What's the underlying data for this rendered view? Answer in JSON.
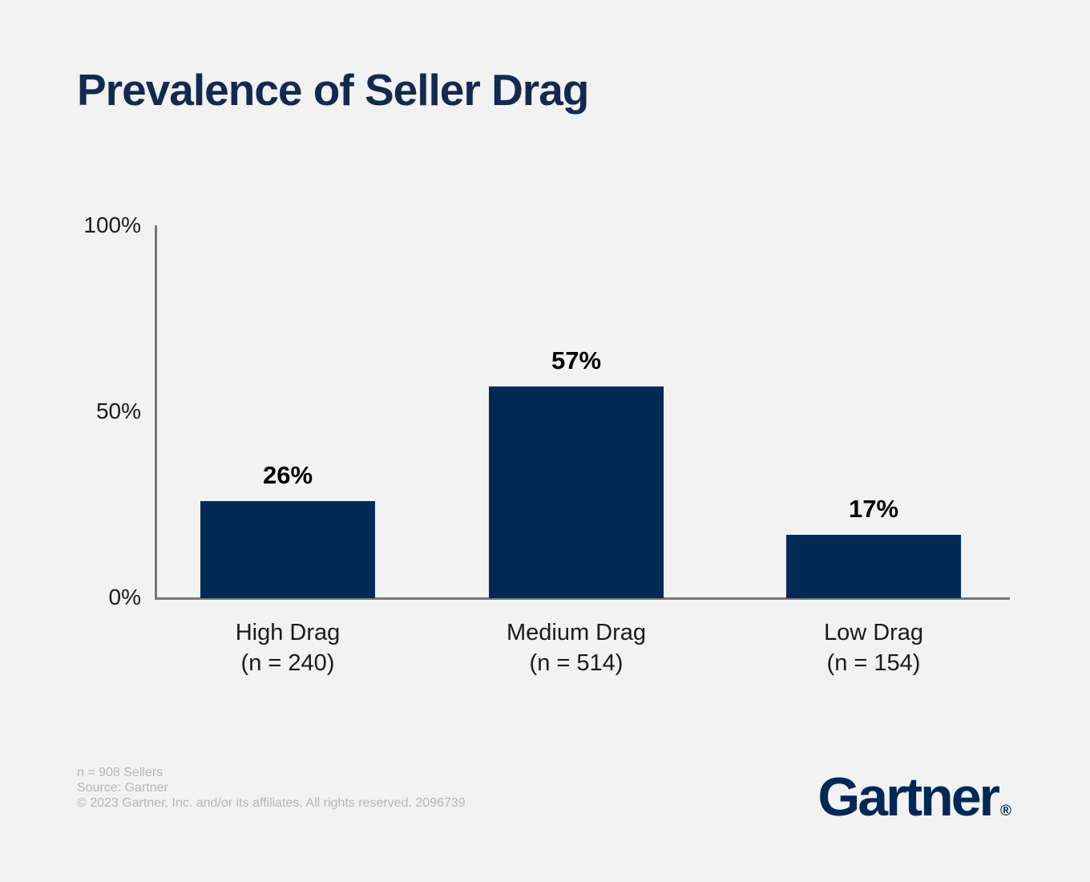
{
  "title": "Prevalence of Seller Drag",
  "chart_data": {
    "type": "bar",
    "categories": [
      "High Drag",
      "Medium Drag",
      "Low Drag"
    ],
    "category_sublabels": [
      "(n = 240)",
      "(n = 514)",
      "(n = 154)"
    ],
    "category_counts": [
      240,
      514,
      154
    ],
    "values": [
      26,
      57,
      17
    ],
    "value_labels": [
      "26%",
      "57%",
      "17%"
    ],
    "title": "Prevalence of Seller Drag",
    "xlabel": "",
    "ylabel": "",
    "ylim": [
      0,
      100
    ],
    "yticks": [
      0,
      50,
      100
    ],
    "ytick_labels": [
      "0%",
      "50%",
      "100%"
    ],
    "grid": false,
    "legend": false,
    "bar_color": "#002a54",
    "axis_color": "#75787b",
    "value_label_color": "#000000",
    "tick_label_color": "#1a1a1a",
    "title_color": "#14294e",
    "background_color": "#f2f2f2",
    "sample_note": "n = 908 Sellers"
  },
  "footer": {
    "lines": [
      "n = 908 Sellers",
      "Source: Gartner",
      "© 2023 Gartner, Inc. and/or its affiliates. All rights reserved. 2096739"
    ],
    "text_color": "#b3b6b8"
  },
  "branding": {
    "logo_text": "Gartner",
    "registered_mark": "®",
    "logo_color": "#002856"
  }
}
